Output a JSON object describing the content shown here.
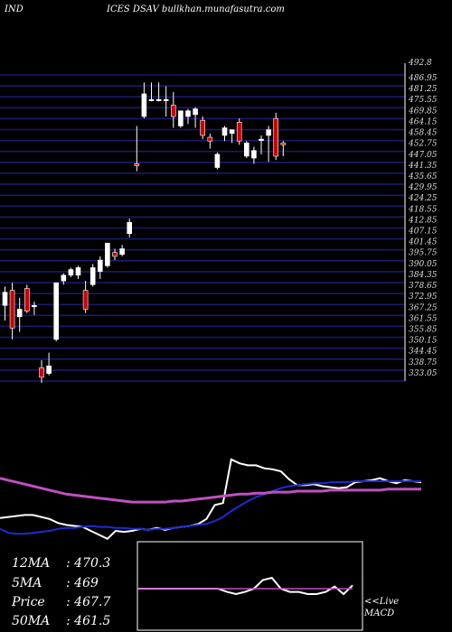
{
  "header": {
    "left": "IND",
    "right": "ICES DSAV bullkhan.munafasutra.com"
  },
  "colors": {
    "background": "#000000",
    "grid": "#1a1a6e",
    "up_candle": "#ffffff",
    "down_candle": "#cc0000",
    "ma_white": "#ffffff",
    "ma_blue": "#1f2ad6",
    "ma_magenta": "#c050c0",
    "macd_signal": "#c050c0"
  },
  "ma_labels": [
    {
      "label": "12MA",
      "value": ": 470.3"
    },
    {
      "label": "5MA",
      "value": ": 469"
    },
    {
      "label": "Price",
      "value": "  : 467.7"
    },
    {
      "label": "50MA",
      "value": ": 461.5"
    }
  ],
  "macd_labels": [
    "<<Live",
    "MACD"
  ],
  "chart_data": [
    {
      "type": "candlestick",
      "price_axis": {
        "top_label": "492.8",
        "tick_labels": [
          "486.95",
          "481.25",
          "475.55",
          "469.85",
          "464.15",
          "458.45",
          "452.75",
          "447.05",
          "441.35",
          "435.65",
          "429.95",
          "424.25",
          "418.55",
          "412.85",
          "407.15",
          "401.45",
          "395.75",
          "390.05",
          "384.35",
          "378.65",
          "372.95",
          "367.25",
          "361.55",
          "355.85",
          "350.15",
          "344.45",
          "338.75",
          "333.05"
        ],
        "ylim": [
          332,
          494
        ]
      },
      "candles": [
        {
          "o": 372,
          "h": 382,
          "l": 364,
          "c": 379
        },
        {
          "o": 380,
          "h": 384,
          "l": 354,
          "c": 360
        },
        {
          "o": 366,
          "h": 376,
          "l": 358,
          "c": 370
        },
        {
          "o": 381,
          "h": 383,
          "l": 368,
          "c": 369
        },
        {
          "o": 372,
          "h": 374,
          "l": 367,
          "c": 372
        },
        {
          "o": 339,
          "h": 343,
          "l": 331,
          "c": 334
        },
        {
          "o": 336,
          "h": 347,
          "l": 335,
          "c": 340
        },
        {
          "o": 354,
          "h": 384,
          "l": 353,
          "c": 384
        },
        {
          "o": 385,
          "h": 389,
          "l": 383,
          "c": 388
        },
        {
          "o": 388,
          "h": 392,
          "l": 387,
          "c": 391
        },
        {
          "o": 388,
          "h": 393,
          "l": 386,
          "c": 392
        },
        {
          "o": 380,
          "h": 385,
          "l": 368,
          "c": 370
        },
        {
          "o": 383,
          "h": 394,
          "l": 382,
          "c": 392
        },
        {
          "o": 390,
          "h": 398,
          "l": 386,
          "c": 396
        },
        {
          "o": 393,
          "h": 405,
          "l": 392,
          "c": 405
        },
        {
          "o": 400,
          "h": 402,
          "l": 396,
          "c": 398
        },
        {
          "o": 399,
          "h": 404,
          "l": 398,
          "c": 402
        },
        {
          "o": 410,
          "h": 418,
          "l": 408,
          "c": 416
        },
        {
          "o": 447,
          "h": 467,
          "l": 443,
          "c": 446
        },
        {
          "o": 472,
          "h": 490,
          "l": 471,
          "c": 484
        },
        {
          "o": 481,
          "h": 490,
          "l": 480,
          "c": 481
        },
        {
          "o": 481,
          "h": 490,
          "l": 480,
          "c": 481
        },
        {
          "o": 481,
          "h": 488,
          "l": 472,
          "c": 481
        },
        {
          "o": 478,
          "h": 485,
          "l": 466,
          "c": 472
        },
        {
          "o": 467,
          "h": 474,
          "l": 466,
          "c": 475
        },
        {
          "o": 472,
          "h": 476,
          "l": 468,
          "c": 475
        },
        {
          "o": 473,
          "h": 477,
          "l": 466,
          "c": 476
        },
        {
          "o": 470,
          "h": 472,
          "l": 460,
          "c": 462
        },
        {
          "o": 461,
          "h": 463,
          "l": 455,
          "c": 459
        },
        {
          "o": 445,
          "h": 453,
          "l": 444,
          "c": 452
        },
        {
          "o": 462,
          "h": 467,
          "l": 459,
          "c": 466
        },
        {
          "o": 463,
          "h": 465,
          "l": 458,
          "c": 465
        },
        {
          "o": 469,
          "h": 471,
          "l": 457,
          "c": 459
        },
        {
          "o": 451,
          "h": 459,
          "l": 450,
          "c": 458
        },
        {
          "o": 450,
          "h": 456,
          "l": 447,
          "c": 454
        },
        {
          "o": 460,
          "h": 462,
          "l": 452,
          "c": 460
        },
        {
          "o": 462,
          "h": 467,
          "l": 448,
          "c": 465
        },
        {
          "o": 471,
          "h": 474,
          "l": 449,
          "c": 451
        },
        {
          "o": 458,
          "h": 459,
          "l": 451,
          "c": 457
        }
      ]
    },
    {
      "type": "line",
      "series": [
        {
          "color": "#ffffff",
          "values": [
            413,
            414,
            415,
            416,
            416,
            414,
            412,
            408,
            406,
            405,
            404,
            400,
            396,
            392,
            400,
            399,
            400,
            402,
            401,
            403,
            401,
            403,
            404,
            405,
            407,
            412,
            426,
            428,
            472,
            468,
            466,
            466,
            463,
            462,
            460,
            452,
            446,
            446,
            447,
            445,
            444,
            443,
            444,
            449,
            450,
            451,
            453,
            450,
            448,
            451,
            450,
            449
          ]
        },
        {
          "color": "#1f2ad6",
          "values": [
            402,
            398,
            397,
            397,
            398,
            399,
            400,
            402,
            403,
            403,
            404,
            405,
            404,
            404,
            403,
            403,
            402,
            402,
            401,
            402,
            402,
            403,
            404,
            405,
            406,
            407,
            410,
            414,
            420,
            425,
            430,
            434,
            437,
            440,
            443,
            445,
            446,
            447,
            448,
            448,
            449,
            449,
            449,
            450,
            450,
            450,
            450,
            450,
            450,
            450,
            450,
            450
          ]
        },
        {
          "color": "#c050c0",
          "values": [
            453,
            451,
            449,
            447,
            445,
            443,
            441,
            439,
            437,
            436,
            435,
            434,
            433,
            432,
            431,
            430,
            429,
            429,
            429,
            429,
            429,
            430,
            430,
            431,
            432,
            433,
            434,
            435,
            436,
            437,
            437,
            438,
            438,
            439,
            439,
            439,
            440,
            440,
            440,
            440,
            441,
            441,
            441,
            441,
            441,
            441,
            441,
            442,
            442,
            442,
            442,
            442
          ]
        }
      ]
    },
    {
      "type": "line",
      "title": "MACD",
      "series": [
        {
          "color": "#ffffff",
          "values": [
            0,
            0,
            0,
            0,
            0,
            0,
            0,
            0,
            0,
            0,
            -0.3,
            -0.5,
            -0.3,
            0,
            0.8,
            1,
            0,
            -0.3,
            -0.3,
            -0.5,
            -0.5,
            -0.3,
            0.2,
            -0.5,
            0.3
          ]
        },
        {
          "color": "#c050c0",
          "values": [
            0,
            0,
            0,
            0,
            0,
            0,
            0,
            0,
            0,
            0,
            0,
            0,
            0,
            0,
            0,
            0,
            0,
            0,
            0,
            0,
            0,
            0,
            0,
            0,
            0
          ]
        }
      ]
    }
  ]
}
